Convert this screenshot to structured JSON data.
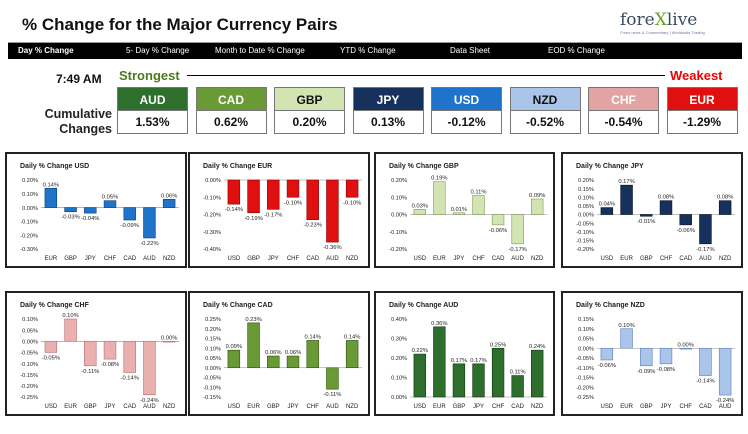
{
  "page": {
    "title": "% Change for the Major Currency Pairs",
    "logo": {
      "wordmark_a": "fore",
      "wordmark_x": "X",
      "wordmark_b": "live",
      "tagline": "Forex news & Commentary | Worldwide Trading"
    }
  },
  "tabs": [
    "Day % Change",
    "5- Day % Change",
    "Month to Date % Change",
    "YTD % Change",
    "Data Sheet",
    "EOD % Change"
  ],
  "time": "7:49 AM",
  "strongest_label": "Strongest",
  "weakest_label": "Weakest",
  "cumulative_label": [
    "Cumulative",
    "Changes"
  ],
  "rankings": [
    {
      "currency": "AUD",
      "value": "1.53%",
      "color": "#2f6f2d",
      "text_color": "#ffffff"
    },
    {
      "currency": "CAD",
      "value": "0.62%",
      "color": "#6a9a35",
      "text_color": "#ffffff"
    },
    {
      "currency": "GBP",
      "value": "0.20%",
      "color": "#d3e4b3",
      "text_color": "#111111"
    },
    {
      "currency": "JPY",
      "value": "0.13%",
      "color": "#16325c",
      "text_color": "#ffffff"
    },
    {
      "currency": "USD",
      "value": "-0.12%",
      "color": "#1f73c9",
      "text_color": "#ffffff"
    },
    {
      "currency": "NZD",
      "value": "-0.52%",
      "color": "#aac4ea",
      "text_color": "#111111"
    },
    {
      "currency": "CHF",
      "value": "-0.54%",
      "color": "#e3a3a3",
      "text_color": "#ffffff"
    },
    {
      "currency": "EUR",
      "value": "-1.29%",
      "color": "#e01010",
      "text_color": "#ffffff"
    }
  ],
  "chart_data": [
    {
      "type": "bar",
      "title": "Daily % Change USD",
      "categories": [
        "EUR",
        "GBP",
        "JPY",
        "CHF",
        "CAD",
        "AUD",
        "NZD"
      ],
      "values": [
        0.14,
        -0.03,
        -0.04,
        0.05,
        -0.09,
        -0.22,
        0.06
      ],
      "labels": [
        "0.14%",
        "-0.03%",
        "-0.04%",
        "0.05%",
        "-0.09%",
        "-0.22%",
        "0.06%"
      ],
      "ylim": [
        -0.3,
        0.2
      ],
      "ticks": [
        "0.20%",
        "0.10%",
        "0.00%",
        "-0.10%",
        "-0.20%",
        "-0.30%"
      ],
      "colors": {
        "fill": "#1f73c9",
        "edge": "#0c3f78"
      }
    },
    {
      "type": "bar",
      "title": "Daily % Change EUR",
      "categories": [
        "USD",
        "GBP",
        "JPY",
        "CHF",
        "CAD",
        "AUD",
        "NZD"
      ],
      "values": [
        -0.14,
        -0.19,
        -0.17,
        -0.1,
        -0.23,
        -0.36,
        -0.1
      ],
      "labels": [
        "-0.14%",
        "-0.19%",
        "-0.17%",
        "-0.10%",
        "-0.23%",
        "-0.36%",
        "-0.10%"
      ],
      "ylim": [
        -0.4,
        0.0
      ],
      "ticks": [
        "0.00%",
        "-0.10%",
        "-0.20%",
        "-0.30%",
        "-0.40%"
      ],
      "colors": {
        "fill": "#e01010",
        "edge": "#8a0000"
      }
    },
    {
      "type": "bar",
      "title": "Daily % Change GBP",
      "categories": [
        "USD",
        "EUR",
        "JPY",
        "CHF",
        "CAD",
        "AUD",
        "NZD"
      ],
      "values": [
        0.03,
        0.19,
        0.01,
        0.11,
        -0.06,
        -0.17,
        0.09
      ],
      "labels": [
        "0.03%",
        "0.19%",
        "0.01%",
        "0.11%",
        "-0.06%",
        "-0.17%",
        "0.09%"
      ],
      "ylim": [
        -0.2,
        0.2
      ],
      "ticks": [
        "0.20%",
        "0.10%",
        "0.00%",
        "-0.10%",
        "-0.20%"
      ],
      "colors": {
        "fill": "#d3e4b3",
        "edge": "#7e9a56"
      }
    },
    {
      "type": "bar",
      "title": "Daily % Change JPY",
      "categories": [
        "USD",
        "EUR",
        "GBP",
        "CHF",
        "CAD",
        "AUD",
        "NZD"
      ],
      "values": [
        0.04,
        0.17,
        -0.01,
        0.08,
        -0.06,
        -0.17,
        0.08
      ],
      "labels": [
        "0.04%",
        "0.17%",
        "-0.01%",
        "0.08%",
        "-0.06%",
        "-0.17%",
        "0.08%"
      ],
      "ylim": [
        -0.2,
        0.2
      ],
      "ticks": [
        "0.20%",
        "0.15%",
        "0.10%",
        "0.05%",
        "0.00%",
        "-0.05%",
        "-0.10%",
        "-0.15%",
        "-0.20%"
      ],
      "colors": {
        "fill": "#16325c",
        "edge": "#050f22"
      }
    },
    {
      "type": "bar",
      "title": "Daily % Change CHF",
      "categories": [
        "USD",
        "EUR",
        "GBP",
        "JPY",
        "CAD",
        "AUD",
        "NZD"
      ],
      "values": [
        -0.05,
        0.1,
        -0.11,
        -0.08,
        -0.14,
        -0.24,
        0.0
      ],
      "labels": [
        "-0.05%",
        "0.10%",
        "-0.11%",
        "-0.08%",
        "-0.14%",
        "-0.24%",
        "0.00%"
      ],
      "ylim": [
        -0.25,
        0.1
      ],
      "ticks": [
        "0.10%",
        "0.05%",
        "0.00%",
        "-0.05%",
        "-0.10%",
        "-0.15%",
        "-0.20%",
        "-0.25%"
      ],
      "colors": {
        "fill": "#eab0b0",
        "edge": "#b56e6e"
      }
    },
    {
      "type": "bar",
      "title": "Daily % Change CAD",
      "categories": [
        "USD",
        "EUR",
        "GBP",
        "JPY",
        "CHF",
        "AUD",
        "NZD"
      ],
      "values": [
        0.09,
        0.23,
        0.06,
        0.06,
        0.14,
        -0.11,
        0.14
      ],
      "labels": [
        "0.09%",
        "0.23%",
        "0.06%",
        "0.06%",
        "0.14%",
        "-0.11%",
        "0.14%"
      ],
      "ylim": [
        -0.15,
        0.25
      ],
      "ticks": [
        "0.25%",
        "0.20%",
        "0.15%",
        "0.10%",
        "0.05%",
        "0.00%",
        "-0.05%",
        "-0.10%",
        "-0.15%"
      ],
      "colors": {
        "fill": "#6a9a35",
        "edge": "#2f5010"
      }
    },
    {
      "type": "bar",
      "title": "Daily % Change AUD",
      "categories": [
        "USD",
        "EUR",
        "GBP",
        "JPY",
        "CHF",
        "CAD",
        "NZD"
      ],
      "values": [
        0.22,
        0.36,
        0.17,
        0.17,
        0.25,
        0.11,
        0.24
      ],
      "labels": [
        "0.22%",
        "0.36%",
        "0.17%",
        "0.17%",
        "0.25%",
        "0.11%",
        "0.24%"
      ],
      "ylim": [
        0.0,
        0.4
      ],
      "ticks": [
        "0.40%",
        "0.30%",
        "0.20%",
        "0.10%",
        "0.00%"
      ],
      "colors": {
        "fill": "#2f6f2d",
        "edge": "#123412"
      }
    },
    {
      "type": "bar",
      "title": "Daily % Change NZD",
      "categories": [
        "USD",
        "EUR",
        "GBP",
        "JPY",
        "CHF",
        "CAD",
        "AUD"
      ],
      "values": [
        -0.06,
        0.1,
        -0.09,
        -0.08,
        0.0,
        -0.14,
        -0.24
      ],
      "labels": [
        "-0.06%",
        "0.10%",
        "-0.09%",
        "-0.08%",
        "0.00%",
        "-0.14%",
        "-0.24%"
      ],
      "ylim": [
        -0.25,
        0.15
      ],
      "ticks": [
        "0.15%",
        "0.10%",
        "0.05%",
        "0.00%",
        "-0.05%",
        "-0.10%",
        "-0.15%",
        "-0.20%",
        "-0.25%"
      ],
      "colors": {
        "fill": "#aac4ea",
        "edge": "#5a7fb8"
      }
    }
  ]
}
